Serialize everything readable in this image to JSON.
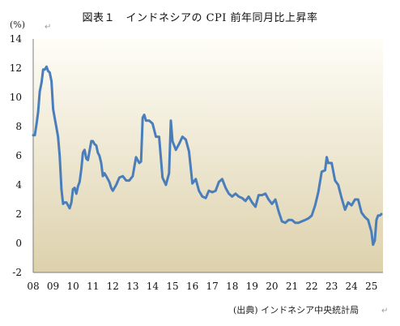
{
  "chart_data": {
    "type": "line",
    "title": "図表１　インドネシアの CPI 前年同月比上昇率",
    "unit": "(%)",
    "source": "(出典) インドネシア中央統計局",
    "ylim": [
      -2,
      14
    ],
    "yticks": [
      "-2",
      "0",
      "2",
      "4",
      "6",
      "8",
      "10",
      "12",
      "14"
    ],
    "xlim": [
      2008,
      2025.58
    ],
    "xticks": [
      "08",
      "09",
      "10",
      "11",
      "12",
      "13",
      "14",
      "15",
      "16",
      "17",
      "18",
      "19",
      "20",
      "21",
      "22",
      "23",
      "24",
      "25"
    ],
    "grid": false,
    "legend": "none",
    "colors": {
      "line": "#4a7ebb",
      "bg_top": "#fefdf7",
      "bg_bottom": "#ddd1ac"
    },
    "series": [
      {
        "x": [
          2008.0,
          2008.08,
          2008.17,
          2008.25,
          2008.33,
          2008.42,
          2008.5,
          2008.58,
          2008.67,
          2008.75,
          2008.83,
          2008.92,
          2009.0,
          2009.08,
          2009.17,
          2009.25,
          2009.33,
          2009.42,
          2009.5,
          2009.58,
          2009.67,
          2009.75,
          2009.83,
          2009.92,
          2010.0,
          2010.08,
          2010.17,
          2010.25,
          2010.33,
          2010.42,
          2010.5,
          2010.58,
          2010.67,
          2010.75,
          2010.83,
          2010.92,
          2011.0,
          2011.08,
          2011.17,
          2011.25,
          2011.33,
          2011.42,
          2011.5,
          2011.58,
          2011.67,
          2011.75,
          2011.83,
          2011.92,
          2012.0,
          2012.17,
          2012.33,
          2012.5,
          2012.67,
          2012.83,
          2013.0,
          2013.17,
          2013.33,
          2013.42,
          2013.5,
          2013.58,
          2013.67,
          2013.83,
          2014.0,
          2014.17,
          2014.33,
          2014.5,
          2014.67,
          2014.83,
          2014.92,
          2015.0,
          2015.17,
          2015.33,
          2015.5,
          2015.67,
          2015.83,
          2016.0,
          2016.17,
          2016.33,
          2016.5,
          2016.67,
          2016.83,
          2017.0,
          2017.17,
          2017.33,
          2017.5,
          2017.67,
          2017.83,
          2018.0,
          2018.17,
          2018.33,
          2018.5,
          2018.67,
          2018.83,
          2019.0,
          2019.17,
          2019.33,
          2019.5,
          2019.67,
          2019.83,
          2020.0,
          2020.17,
          2020.33,
          2020.5,
          2020.67,
          2020.83,
          2021.0,
          2021.17,
          2021.33,
          2021.5,
          2021.67,
          2021.83,
          2022.0,
          2022.17,
          2022.33,
          2022.5,
          2022.67,
          2022.75,
          2022.83,
          2023.0,
          2023.17,
          2023.33,
          2023.5,
          2023.67,
          2023.83,
          2024.0,
          2024.17,
          2024.33,
          2024.5,
          2024.67,
          2024.83,
          2025.0,
          2025.08,
          2025.17,
          2025.25,
          2025.33,
          2025.42,
          2025.5
        ],
        "values": [
          7.4,
          7.4,
          8.2,
          9.0,
          10.4,
          11.0,
          11.9,
          11.9,
          12.1,
          11.8,
          11.7,
          11.1,
          9.2,
          8.6,
          7.9,
          7.3,
          6.0,
          3.7,
          2.7,
          2.8,
          2.8,
          2.6,
          2.4,
          2.8,
          3.7,
          3.8,
          3.4,
          3.9,
          4.2,
          5.1,
          6.2,
          6.4,
          5.8,
          5.7,
          6.3,
          7.0,
          7.0,
          6.8,
          6.7,
          6.2,
          6.0,
          5.5,
          4.6,
          4.8,
          4.6,
          4.4,
          4.2,
          3.8,
          3.6,
          4.0,
          4.5,
          4.6,
          4.3,
          4.3,
          4.6,
          5.9,
          5.5,
          5.6,
          8.6,
          8.8,
          8.4,
          8.4,
          8.2,
          7.3,
          7.3,
          4.5,
          4.0,
          4.8,
          8.4,
          7.0,
          6.4,
          6.8,
          7.3,
          7.1,
          6.3,
          4.1,
          4.4,
          3.6,
          3.2,
          3.1,
          3.6,
          3.5,
          3.6,
          4.2,
          4.4,
          3.8,
          3.4,
          3.2,
          3.4,
          3.2,
          3.1,
          2.9,
          3.2,
          2.8,
          2.5,
          3.3,
          3.3,
          3.4,
          3.0,
          2.7,
          3.0,
          2.2,
          1.5,
          1.4,
          1.6,
          1.6,
          1.4,
          1.4,
          1.5,
          1.6,
          1.7,
          1.9,
          2.6,
          3.5,
          4.9,
          5.0,
          5.9,
          5.5,
          5.5,
          4.3,
          4.0,
          3.1,
          2.3,
          2.8,
          2.6,
          3.0,
          3.0,
          2.1,
          1.8,
          1.6,
          0.8,
          -0.1,
          0.2,
          1.6,
          1.9,
          1.9,
          2.0
        ]
      }
    ]
  }
}
